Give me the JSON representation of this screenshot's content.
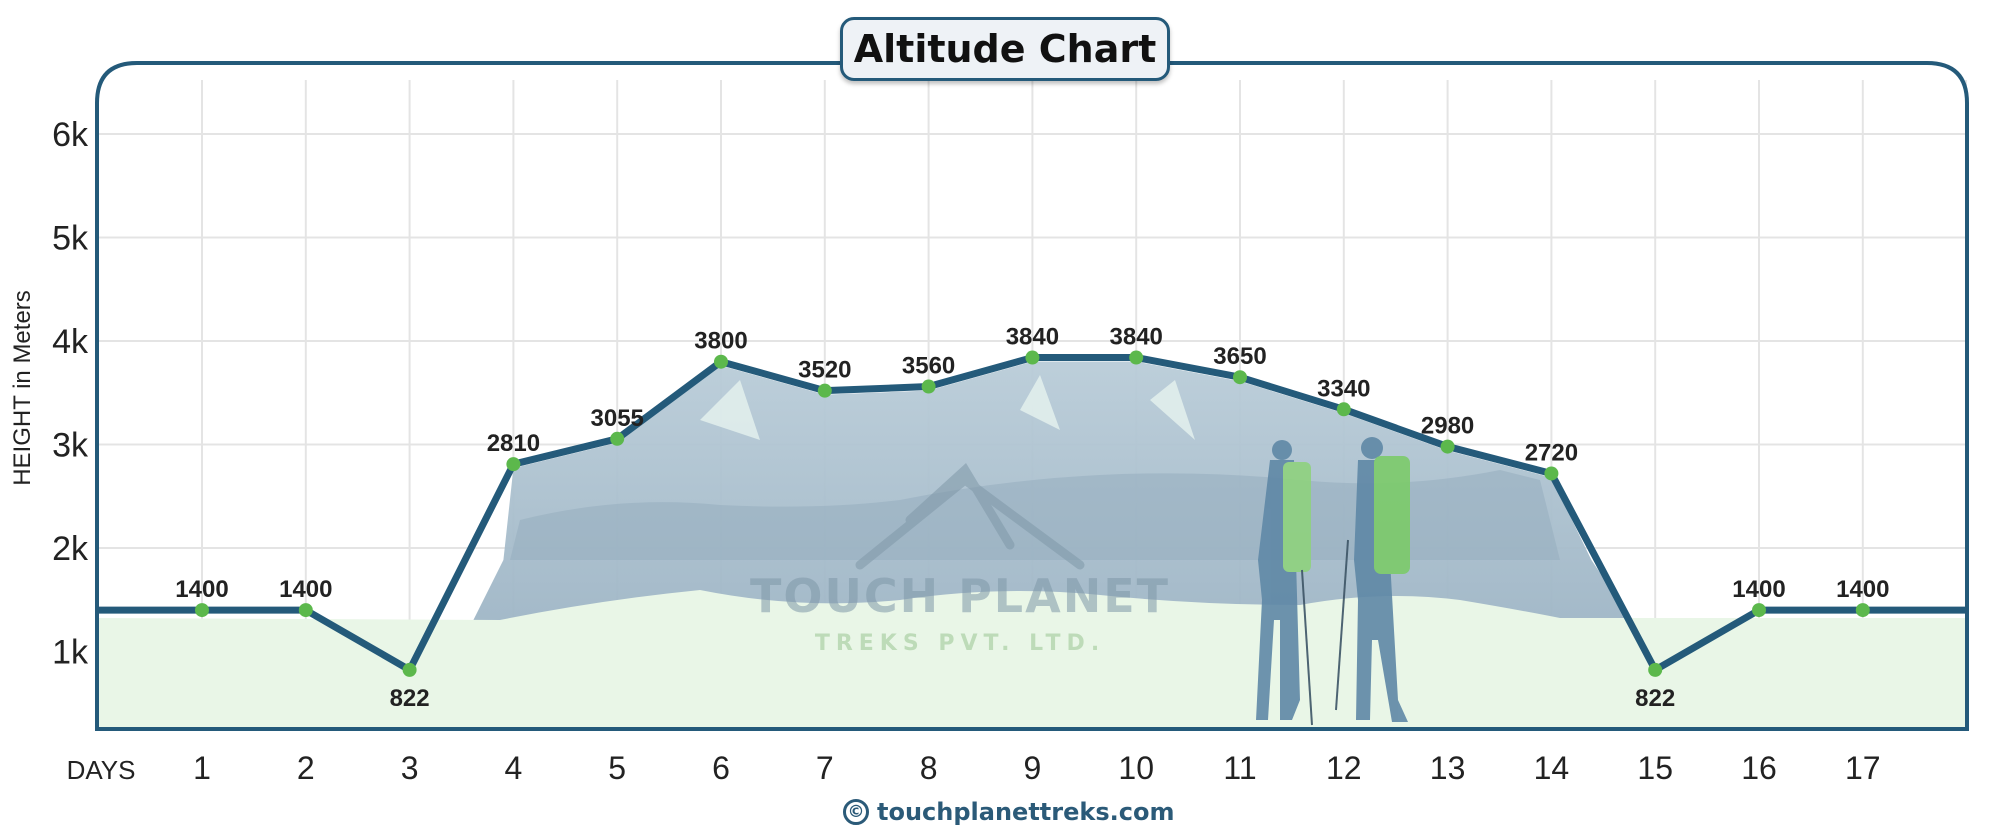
{
  "title": "Altitude Chart",
  "footer": {
    "copyright_icon": "©",
    "site": "touchplanettreks.com"
  },
  "watermark": {
    "line1": "TOUCH PLANET",
    "line2": "TREKS PVT. LTD."
  },
  "colors": {
    "line": "#245a7a",
    "point": "#5cb84c",
    "grid": "#e4e4e4",
    "ground": "#e9f6e7",
    "mountain": "#a9bfcd",
    "frame": "#245a7a"
  },
  "chart_data": {
    "type": "line",
    "title": "Altitude Chart",
    "xlabel": "DAYS",
    "ylabel": "HEIGHT in Meters",
    "categories": [
      "1",
      "2",
      "3",
      "4",
      "5",
      "6",
      "7",
      "8",
      "9",
      "10",
      "11",
      "12",
      "13",
      "14",
      "15",
      "16",
      "17"
    ],
    "values": [
      1400,
      1400,
      822,
      2810,
      3055,
      3800,
      3520,
      3560,
      3840,
      3840,
      3650,
      3340,
      2980,
      2720,
      822,
      1400,
      1400
    ],
    "y_ticks": [
      "1k",
      "2k",
      "3k",
      "4k",
      "5k",
      "6k"
    ],
    "ylim": [
      0,
      6500
    ],
    "grid": true,
    "legend": null
  }
}
